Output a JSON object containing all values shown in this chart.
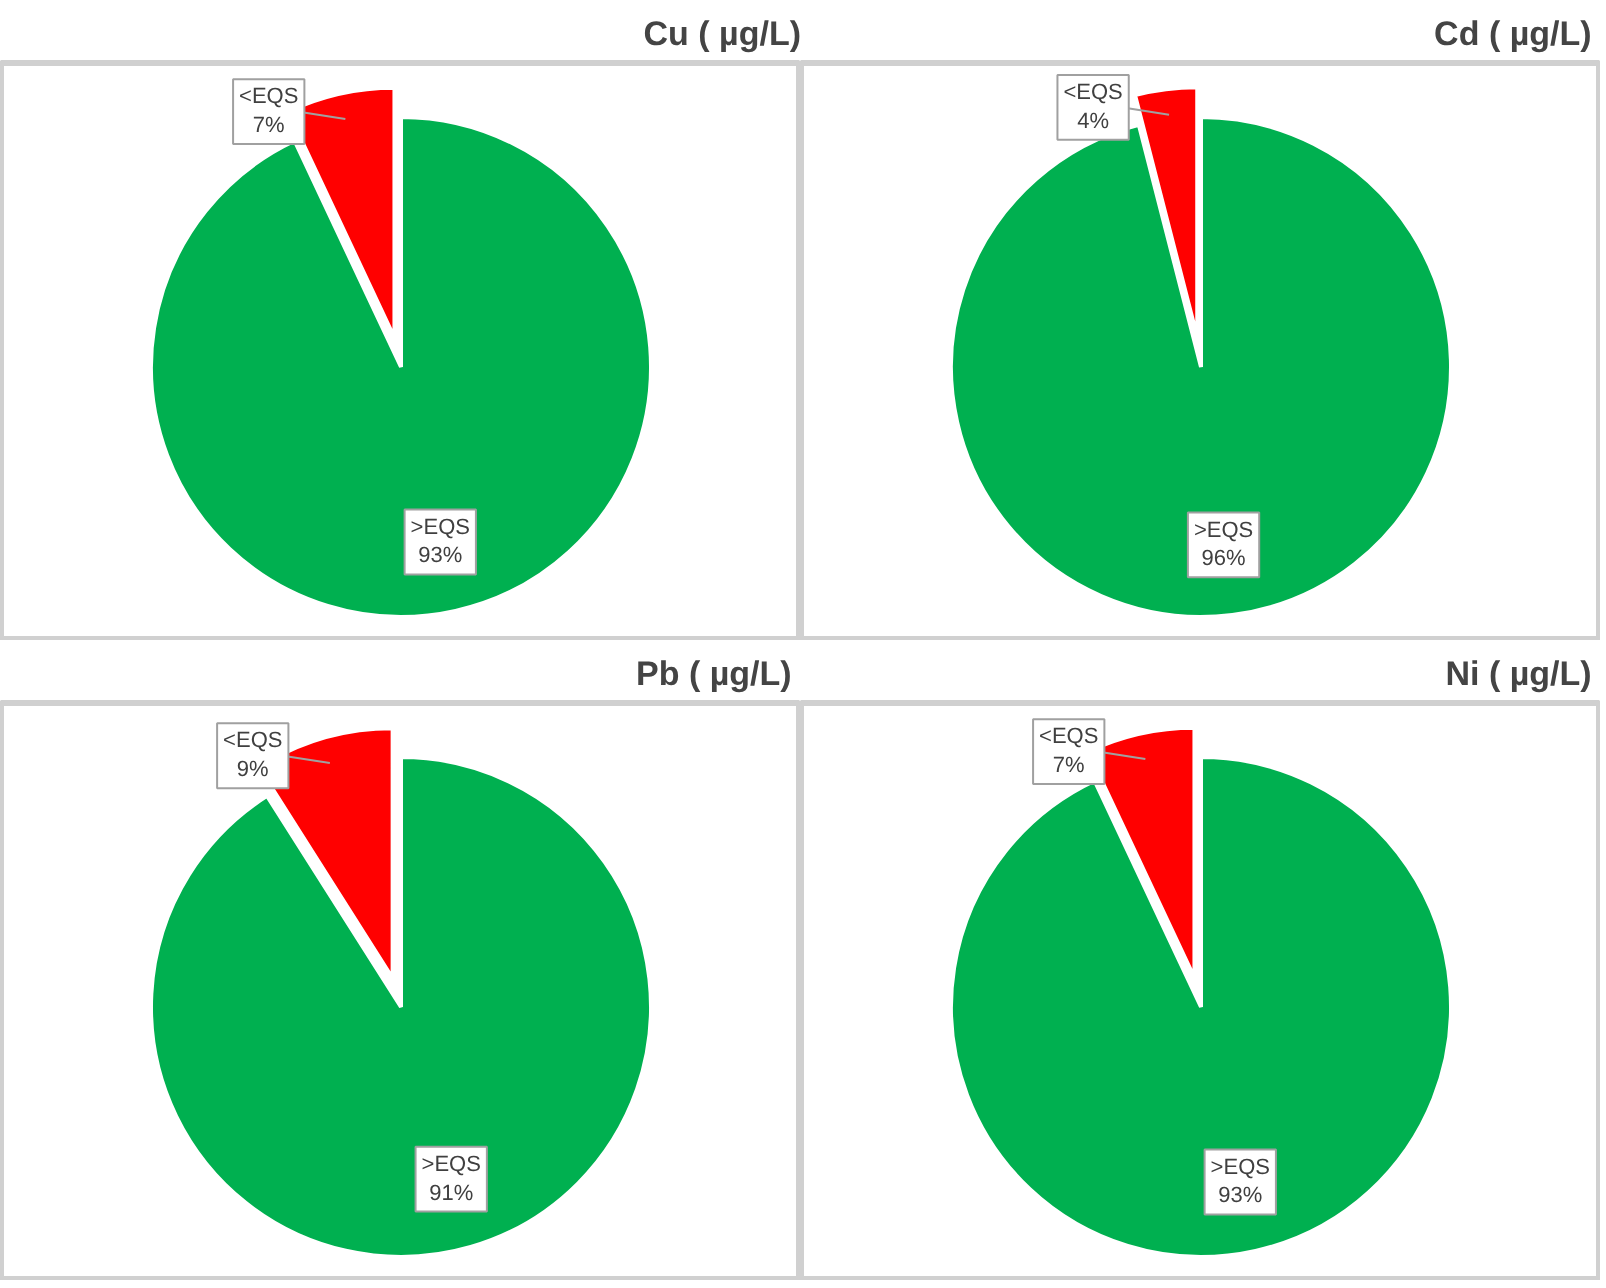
{
  "chart_data": [
    {
      "type": "pie",
      "title": "Cu ( µg/L)",
      "categories": [
        ">EQS",
        "<EQS"
      ],
      "values": [
        93,
        7
      ],
      "colors": [
        "#00b050",
        "#ff0000"
      ],
      "value_labels": [
        "93%",
        "7%"
      ]
    },
    {
      "type": "pie",
      "title": "Cd  ( µg/L)",
      "categories": [
        ">EQS",
        "<EQS"
      ],
      "values": [
        96,
        4
      ],
      "colors": [
        "#00b050",
        "#ff0000"
      ],
      "value_labels": [
        "96%",
        "4%"
      ]
    },
    {
      "type": "pie",
      "title": "Pb  ( µg/L)",
      "categories": [
        ">EQS",
        "<EQS"
      ],
      "values": [
        91,
        9
      ],
      "colors": [
        "#00b050",
        "#ff0000"
      ],
      "value_labels": [
        "91%",
        "9%"
      ]
    },
    {
      "type": "pie",
      "title": "Ni  ( µg/L)",
      "categories": [
        ">EQS",
        "<EQS"
      ],
      "values": [
        93,
        7
      ],
      "colors": [
        "#00b050",
        "#ff0000"
      ],
      "value_labels": [
        "93%",
        "7%"
      ]
    }
  ]
}
